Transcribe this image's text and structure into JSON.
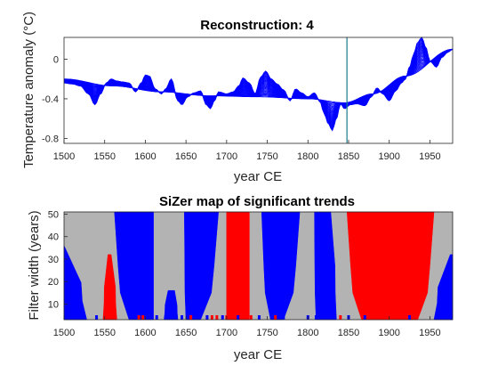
{
  "chart_data": [
    {
      "type": "line",
      "title": "Reconstruction: 4",
      "xlabel": "year CE",
      "ylabel": "Temperature anomaly (°C)",
      "xlim": [
        1500,
        1978
      ],
      "ylim": [
        -0.85,
        0.22
      ],
      "x_ticks": [
        1500,
        1550,
        1600,
        1650,
        1700,
        1750,
        1800,
        1850,
        1900,
        1950
      ],
      "y_ticks": [
        {
          "value": 0,
          "label": "0"
        },
        {
          "value": -0.4,
          "label": "-0.4"
        },
        {
          "value": -0.8,
          "label": "-0.8"
        }
      ],
      "vline_year": 1848,
      "colors": {
        "curves": "#0000ff",
        "vline": "#1a7a8c"
      },
      "n_curves": 26,
      "smooth_trend": {
        "x": [
          1500,
          1560,
          1620,
          1680,
          1740,
          1800,
          1845,
          1880,
          1920,
          1978
        ],
        "y": [
          -0.2,
          -0.27,
          -0.33,
          -0.37,
          -0.38,
          -0.4,
          -0.44,
          -0.35,
          -0.17,
          0.1
        ]
      },
      "detailed": {
        "x": [
          1500,
          1510,
          1520,
          1530,
          1538,
          1545,
          1552,
          1558,
          1565,
          1572,
          1580,
          1588,
          1595,
          1600,
          1605,
          1612,
          1620,
          1625,
          1632,
          1640,
          1645,
          1652,
          1660,
          1668,
          1675,
          1680,
          1685,
          1690,
          1700,
          1708,
          1715,
          1720,
          1728,
          1735,
          1742,
          1748,
          1755,
          1762,
          1770,
          1778,
          1785,
          1792,
          1800,
          1808,
          1815,
          1820,
          1825,
          1830,
          1835,
          1840,
          1845,
          1852,
          1860,
          1870,
          1878,
          1885,
          1892,
          1900,
          1908,
          1915,
          1920,
          1925,
          1930,
          1935,
          1940,
          1945,
          1950,
          1958,
          1965,
          1972,
          1978
        ],
        "y": [
          -0.24,
          -0.25,
          -0.27,
          -0.35,
          -0.46,
          -0.35,
          -0.24,
          -0.2,
          -0.22,
          -0.23,
          -0.24,
          -0.33,
          -0.24,
          -0.16,
          -0.17,
          -0.3,
          -0.35,
          -0.3,
          -0.2,
          -0.42,
          -0.46,
          -0.38,
          -0.34,
          -0.32,
          -0.46,
          -0.5,
          -0.42,
          -0.33,
          -0.35,
          -0.33,
          -0.27,
          -0.19,
          -0.24,
          -0.35,
          -0.18,
          -0.12,
          -0.2,
          -0.25,
          -0.31,
          -0.42,
          -0.3,
          -0.34,
          -0.38,
          -0.34,
          -0.43,
          -0.55,
          -0.65,
          -0.72,
          -0.6,
          -0.45,
          -0.5,
          -0.46,
          -0.45,
          -0.47,
          -0.38,
          -0.29,
          -0.35,
          -0.42,
          -0.32,
          -0.24,
          -0.2,
          -0.08,
          0.05,
          0.17,
          0.22,
          0.12,
          -0.02,
          -0.08,
          0.02,
          0.07,
          0.1
        ]
      }
    },
    {
      "type": "heatmap",
      "title": "SiZer map of significant trends",
      "xlabel": "year CE",
      "ylabel": "Filter width (years)",
      "xlim": [
        1500,
        1978
      ],
      "ylim": [
        3,
        51
      ],
      "x_ticks": [
        1500,
        1550,
        1600,
        1650,
        1700,
        1750,
        1800,
        1850,
        1900,
        1950
      ],
      "y_ticks": [
        10,
        20,
        30,
        40,
        50
      ],
      "colors": {
        "increasing": "#ff0000",
        "decreasing": "#0000ff",
        "not_significant": "#b3b3b3"
      },
      "regions": [
        {
          "trend": "decreasing",
          "x0_bottom": 1500,
          "x1_bottom": 1528,
          "x0_top": 1500,
          "x1_top": 1500,
          "top": 36
        },
        {
          "trend": "increasing",
          "x0_bottom": 1548,
          "x1_bottom": 1565,
          "x0_top": 1554,
          "x1_top": 1558,
          "top": 32
        },
        {
          "trend": "decreasing",
          "x0_bottom": 1580,
          "x1_bottom": 1610,
          "x0_top": 1562,
          "x1_top": 1610,
          "top": 51
        },
        {
          "trend": "decreasing",
          "x0_bottom": 1623,
          "x1_bottom": 1640,
          "x0_top": 1628,
          "x1_top": 1636,
          "top": 16
        },
        {
          "trend": "decreasing",
          "x0_bottom": 1650,
          "x1_bottom": 1668,
          "x0_top": 1648,
          "x1_top": 1690,
          "top": 51
        },
        {
          "trend": "increasing",
          "x0_bottom": 1700,
          "x1_bottom": 1728,
          "x0_top": 1700,
          "x1_top": 1728,
          "top": 51
        },
        {
          "trend": "decreasing",
          "x0_bottom": 1754,
          "x1_bottom": 1770,
          "x0_top": 1743,
          "x1_top": 1790,
          "top": 51
        },
        {
          "trend": "decreasing",
          "x0_bottom": 1810,
          "x1_bottom": 1835,
          "x0_top": 1808,
          "x1_top": 1828,
          "top": 51
        },
        {
          "trend": "increasing",
          "x0_bottom": 1866,
          "x1_bottom": 1935,
          "x0_top": 1848,
          "x1_top": 1955,
          "top": 51
        },
        {
          "trend": "decreasing",
          "x0_bottom": 1955,
          "x1_bottom": 1978,
          "x0_top": 1975,
          "x1_top": 1978,
          "top": 32
        }
      ],
      "spots": [
        {
          "trend": "increasing",
          "x": [
            1550,
            1555,
            1592,
            1597,
            1656,
            1682,
            1688,
            1700,
            1705,
            1730,
            1760,
            1840,
            1880,
            1900,
            1912
          ]
        },
        {
          "trend": "decreasing",
          "x": [
            1540,
            1614,
            1645,
            1676,
            1695,
            1714,
            1740,
            1770,
            1800,
            1810,
            1850,
            1870,
            1925
          ]
        }
      ]
    }
  ]
}
